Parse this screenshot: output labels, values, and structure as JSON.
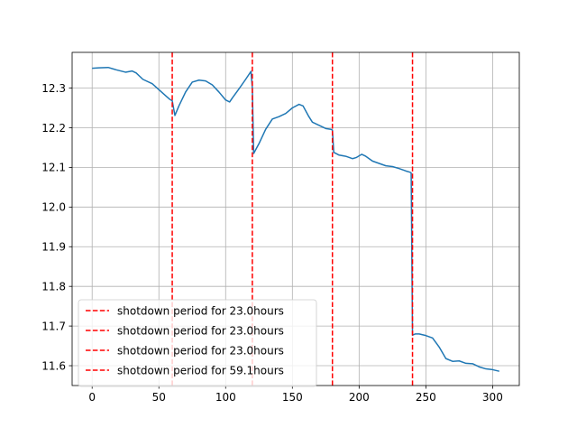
{
  "chart_data": {
    "type": "line",
    "title": "",
    "xlabel": "",
    "ylabel": "",
    "xlim": [
      -15,
      320
    ],
    "ylim": [
      11.55,
      12.39
    ],
    "grid": true,
    "legend_position": "lower-left",
    "x_ticks": [
      0,
      50,
      100,
      150,
      200,
      250,
      300
    ],
    "x_tick_labels": [
      "0",
      "50",
      "100",
      "150",
      "200",
      "250",
      "300"
    ],
    "y_ticks": [
      11.6,
      11.7,
      11.8,
      11.9,
      12.0,
      12.1,
      12.2,
      12.3
    ],
    "y_tick_labels": [
      "11.6",
      "11.7",
      "11.8",
      "11.9",
      "12.0",
      "12.1",
      "12.2",
      "12.3"
    ],
    "series": [
      {
        "color": "#1f77b4",
        "x": [
          0,
          5,
          12,
          18,
          25,
          30,
          33,
          38,
          45,
          50,
          55,
          58,
          60,
          62,
          65,
          70,
          75,
          80,
          85,
          90,
          95,
          100,
          103,
          105,
          110,
          115,
          119,
          120,
          121,
          125,
          130,
          135,
          140,
          145,
          150,
          155,
          158,
          162,
          165,
          170,
          175,
          179,
          180,
          181,
          185,
          190,
          195,
          198,
          202,
          205,
          210,
          215,
          220,
          225,
          230,
          235,
          238,
          239,
          240,
          242,
          245,
          250,
          255,
          260,
          265,
          270,
          275,
          280,
          285,
          290,
          295,
          300,
          305
        ],
        "y": [
          12.35,
          12.351,
          12.352,
          12.346,
          12.34,
          12.343,
          12.338,
          12.322,
          12.311,
          12.296,
          12.281,
          12.272,
          12.268,
          12.231,
          12.255,
          12.29,
          12.315,
          12.32,
          12.318,
          12.308,
          12.29,
          12.27,
          12.265,
          12.275,
          12.298,
          12.322,
          12.342,
          12.3,
          12.135,
          12.16,
          12.196,
          12.222,
          12.228,
          12.236,
          12.25,
          12.259,
          12.255,
          12.23,
          12.214,
          12.206,
          12.198,
          12.196,
          12.194,
          12.138,
          12.131,
          12.128,
          12.122,
          12.125,
          12.133,
          12.128,
          12.116,
          12.11,
          12.104,
          12.102,
          12.097,
          12.091,
          12.088,
          12.086,
          11.677,
          11.68,
          11.68,
          11.676,
          11.67,
          11.647,
          11.618,
          11.611,
          11.612,
          11.606,
          11.605,
          11.597,
          11.592,
          11.59,
          11.586
        ]
      }
    ],
    "vlines": [
      {
        "x": 60,
        "color": "#ff0000",
        "style": "dashed",
        "label": "shotdown period for 23.0hours"
      },
      {
        "x": 120,
        "color": "#ff0000",
        "style": "dashed",
        "label": "shotdown period for 23.0hours"
      },
      {
        "x": 180,
        "color": "#ff0000",
        "style": "dashed",
        "label": "shotdown period for 23.0hours"
      },
      {
        "x": 240,
        "color": "#ff0000",
        "style": "dashed",
        "label": "shotdown period for 59.1hours"
      }
    ]
  }
}
